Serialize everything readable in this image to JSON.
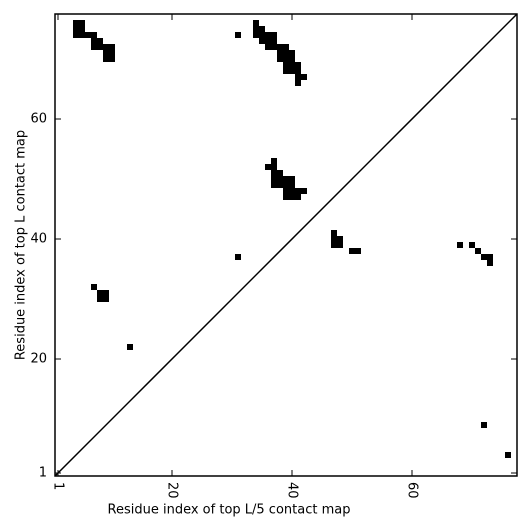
{
  "chart_data": {
    "type": "scatter",
    "marker": "square",
    "xlabel": "Residue index of top L/5 contact map",
    "ylabel": "Residue index of top L contact map",
    "xlim": [
      0.5,
      77.5
    ],
    "ylim": [
      0.5,
      77.5
    ],
    "xticks": [
      1,
      20,
      40,
      60
    ],
    "yticks": [
      1,
      20,
      40,
      60
    ],
    "diagonal": true,
    "series": [
      {
        "color": "#000000",
        "x": [
          4,
          4,
          4,
          5,
          5,
          5,
          6,
          7,
          7,
          7,
          8,
          8,
          9,
          9,
          9,
          10,
          10,
          10,
          31,
          34,
          34,
          34,
          35,
          35,
          35,
          36,
          37,
          36,
          37,
          36,
          37,
          38,
          39,
          38,
          39,
          40,
          38,
          39,
          40,
          39,
          40,
          41,
          39,
          40,
          41,
          41,
          42,
          41,
          36,
          37,
          37,
          37,
          38,
          37,
          38,
          39,
          40,
          37,
          38,
          39,
          40,
          39,
          40,
          41,
          42,
          39,
          40,
          41,
          47,
          47,
          48,
          47,
          48,
          50,
          51,
          68,
          70,
          71,
          72,
          73,
          73,
          31,
          7,
          8,
          9,
          8,
          9,
          13,
          72,
          76
        ],
        "y": [
          74,
          75,
          76,
          74,
          75,
          76,
          74,
          74,
          73,
          72,
          73,
          72,
          72,
          71,
          70,
          72,
          71,
          70,
          74,
          76,
          75,
          74,
          75,
          74,
          73,
          74,
          74,
          73,
          73,
          72,
          72,
          72,
          72,
          71,
          71,
          71,
          70,
          70,
          70,
          69,
          69,
          69,
          68,
          68,
          68,
          67,
          67,
          66,
          52,
          53,
          52,
          51,
          51,
          50,
          50,
          50,
          50,
          49,
          49,
          49,
          49,
          48,
          48,
          48,
          48,
          47,
          47,
          47,
          41,
          40,
          40,
          39,
          39,
          38,
          38,
          39,
          39,
          38,
          37,
          37,
          36,
          37,
          32,
          31,
          31,
          30,
          30,
          22,
          9,
          4
        ]
      }
    ]
  }
}
